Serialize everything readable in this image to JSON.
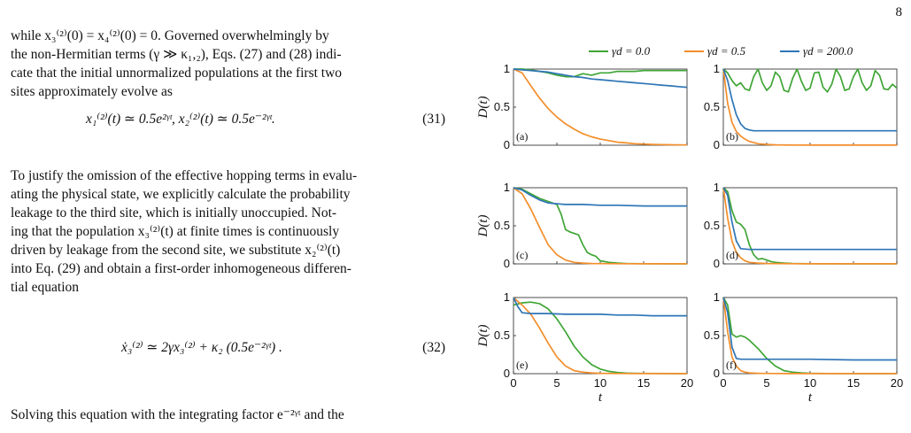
{
  "page_number": "8",
  "text": {
    "para1_lines": [
      "while x₃⁽²⁾(0) = x₄⁽²⁾(0) = 0. Governed overwhelmingly by",
      "the non-Hermitian terms (γ ≫ κ₁,₂), Eqs. (27) and (28) indi-",
      "cate that the initial unnormalized populations at the first two",
      "sites approximately evolve as"
    ],
    "eq31": "x₁⁽²⁾(t) ≃ 0.5e²ᵞᵗ,       x₂⁽²⁾(t) ≃ 0.5e⁻²ᵞᵗ.",
    "eq31_num": "(31)",
    "para2_lines": [
      "To justify the omission of the effective hopping terms in evalu-",
      "ating the physical state, we explicitly calculate the probability",
      "leakage to the third site, which is initially unoccupied. Not-",
      "ing that the population x₃⁽²⁾(t) at finite times is continuously",
      "driven by leakage from the second site, we substitute x₂⁽²⁾(t)",
      "into Eq. (29) and obtain a first-order inhomogeneous differen-",
      "tial equation"
    ],
    "eq32": "ẋ₃⁽²⁾ ≃ 2γx₃⁽²⁾ + κ₂ (0.5e⁻²ᵞᵗ) .",
    "eq32_num": "(32)",
    "para3_line": "Solving this equation with the integrating factor e⁻²ᵞᵗ and the"
  },
  "chart_data": {
    "type": "line",
    "legend": [
      "γd = 0.0",
      "γd = 0.5",
      "γd = 200.0"
    ],
    "colors": [
      "#3fa535",
      "#f28e2b",
      "#2e75b6"
    ],
    "xlabel": "t",
    "ylabel": "D(t)",
    "xlim": [
      0,
      20
    ],
    "ylim": [
      0,
      1
    ],
    "xticks": [
      "0",
      "5",
      "10",
      "15",
      "20"
    ],
    "yticks": [
      "0",
      "0.5",
      "1"
    ],
    "panels": [
      {
        "label": "(a)",
        "series": [
          {
            "x": [
              0,
              1,
              2,
              3,
              4,
              5,
              6,
              7,
              8,
              9,
              10,
              11,
              12,
              13,
              14,
              15,
              16,
              17,
              18,
              19,
              20
            ],
            "y": [
              1,
              1,
              0.99,
              0.97,
              0.95,
              0.92,
              0.9,
              0.9,
              0.94,
              0.92,
              0.95,
              0.95,
              0.97,
              0.97,
              0.97,
              0.98,
              0.98,
              0.98,
              0.98,
              0.98,
              0.98
            ]
          },
          {
            "x": [
              0,
              1,
              2,
              3,
              4,
              5,
              6,
              7,
              8,
              9,
              10,
              11,
              12,
              13,
              14,
              15,
              16,
              17,
              18,
              19,
              20
            ],
            "y": [
              1,
              0.95,
              0.78,
              0.62,
              0.48,
              0.37,
              0.28,
              0.21,
              0.15,
              0.11,
              0.08,
              0.06,
              0.04,
              0.03,
              0.02,
              0.015,
              0.01,
              0.008,
              0.006,
              0.005,
              0.004
            ]
          },
          {
            "x": [
              0,
              1,
              2,
              3,
              4,
              5,
              6,
              7,
              8,
              9,
              10,
              11,
              12,
              13,
              14,
              15,
              16,
              17,
              18,
              19,
              20
            ],
            "y": [
              1,
              0.99,
              0.98,
              0.97,
              0.96,
              0.94,
              0.92,
              0.9,
              0.89,
              0.87,
              0.86,
              0.85,
              0.84,
              0.83,
              0.82,
              0.81,
              0.8,
              0.79,
              0.78,
              0.77,
              0.76
            ]
          }
        ]
      },
      {
        "label": "(b)",
        "series": [
          {
            "x": [
              0,
              0.5,
              1,
              1.5,
              2,
              2.5,
              3,
              3.5,
              4,
              4.5,
              5,
              5.5,
              6,
              6.5,
              7,
              7.5,
              8,
              8.5,
              9,
              9.5,
              10,
              10.5,
              11,
              11.5,
              12,
              12.5,
              13,
              13.5,
              14,
              14.5,
              15,
              15.5,
              16,
              16.5,
              17,
              17.5,
              18,
              18.5,
              19,
              19.5,
              20
            ],
            "y": [
              1,
              0.95,
              0.85,
              0.78,
              0.82,
              0.74,
              0.72,
              0.9,
              1,
              0.82,
              0.72,
              0.78,
              0.96,
              0.9,
              0.72,
              0.7,
              0.88,
              1,
              0.84,
              0.72,
              0.75,
              0.95,
              0.96,
              0.76,
              0.7,
              0.8,
              1,
              0.9,
              0.72,
              0.74,
              0.9,
              1,
              0.82,
              0.72,
              0.78,
              0.98,
              0.92,
              0.74,
              0.73,
              0.8,
              0.75
            ]
          },
          {
            "x": [
              0,
              0.5,
              1,
              1.5,
              2,
              2.5,
              3,
              4,
              5,
              6,
              8,
              10,
              15,
              20
            ],
            "y": [
              1,
              0.55,
              0.3,
              0.18,
              0.12,
              0.08,
              0.05,
              0.02,
              0.01,
              0.005,
              0.002,
              0.001,
              0.001,
              0.001
            ]
          },
          {
            "x": [
              0,
              0.5,
              1,
              1.5,
              2,
              2.5,
              3,
              3.5,
              4,
              5,
              6,
              8,
              10,
              15,
              20
            ],
            "y": [
              1,
              0.85,
              0.6,
              0.4,
              0.28,
              0.22,
              0.2,
              0.19,
              0.19,
              0.19,
              0.19,
              0.19,
              0.19,
              0.19,
              0.19
            ]
          }
        ]
      },
      {
        "label": "(c)",
        "series": [
          {
            "x": [
              0,
              1,
              2,
              3,
              4,
              5,
              5.5,
              6,
              6.5,
              7,
              7.5,
              8,
              8.5,
              9,
              9.5,
              10,
              10.5,
              11,
              12,
              13,
              14,
              15,
              20
            ],
            "y": [
              1,
              0.98,
              0.92,
              0.86,
              0.82,
              0.78,
              0.65,
              0.45,
              0.42,
              0.4,
              0.38,
              0.25,
              0.15,
              0.12,
              0.1,
              0.04,
              0.03,
              0.02,
              0.01,
              0.005,
              0.003,
              0.002,
              0.001
            ]
          },
          {
            "x": [
              0,
              1,
              2,
              3,
              4,
              5,
              6,
              7,
              8,
              9,
              10,
              12,
              15,
              20
            ],
            "y": [
              1,
              0.92,
              0.72,
              0.48,
              0.25,
              0.12,
              0.05,
              0.02,
              0.01,
              0.005,
              0.003,
              0.002,
              0.001,
              0.001
            ]
          },
          {
            "x": [
              0,
              1,
              2,
              3,
              4,
              5,
              6,
              8,
              10,
              12,
              15,
              20
            ],
            "y": [
              1,
              0.97,
              0.9,
              0.84,
              0.8,
              0.79,
              0.78,
              0.78,
              0.77,
              0.77,
              0.76,
              0.76
            ]
          }
        ]
      },
      {
        "label": "(d)",
        "series": [
          {
            "x": [
              0,
              0.5,
              1,
              1.5,
              2,
              2.5,
              3,
              3.5,
              4,
              4.5,
              5,
              5.5,
              6,
              7,
              8,
              10,
              15,
              20
            ],
            "y": [
              1,
              0.95,
              0.7,
              0.55,
              0.52,
              0.45,
              0.25,
              0.12,
              0.06,
              0.07,
              0.05,
              0.03,
              0.02,
              0.01,
              0.005,
              0.002,
              0.001,
              0.001
            ]
          },
          {
            "x": [
              0,
              0.5,
              1,
              1.5,
              2,
              2.5,
              3,
              4,
              5,
              6,
              8,
              10,
              15,
              20
            ],
            "y": [
              1,
              0.6,
              0.3,
              0.15,
              0.08,
              0.04,
              0.02,
              0.01,
              0.005,
              0.003,
              0.002,
              0.001,
              0.001,
              0.001
            ]
          },
          {
            "x": [
              0,
              0.5,
              1,
              1.5,
              2,
              3,
              4,
              5,
              6,
              8,
              10,
              15,
              20
            ],
            "y": [
              1,
              0.9,
              0.55,
              0.3,
              0.2,
              0.19,
              0.19,
              0.19,
              0.19,
              0.19,
              0.19,
              0.19,
              0.19
            ]
          }
        ]
      },
      {
        "label": "(e)",
        "series": [
          {
            "x": [
              0,
              1,
              2,
              3,
              4,
              5,
              6,
              7,
              8,
              9,
              10,
              11,
              12,
              13,
              14,
              15,
              20
            ],
            "y": [
              0.9,
              0.93,
              0.94,
              0.92,
              0.85,
              0.72,
              0.55,
              0.36,
              0.22,
              0.12,
              0.06,
              0.03,
              0.015,
              0.008,
              0.005,
              0.003,
              0.001
            ]
          },
          {
            "x": [
              0,
              1,
              2,
              3,
              4,
              5,
              6,
              7,
              8,
              9,
              10,
              12,
              15,
              20
            ],
            "y": [
              1,
              0.9,
              0.78,
              0.6,
              0.4,
              0.22,
              0.1,
              0.04,
              0.02,
              0.01,
              0.005,
              0.002,
              0.001,
              0.001
            ]
          },
          {
            "x": [
              0,
              0.5,
              1,
              2,
              4,
              6,
              8,
              10,
              12,
              14,
              16,
              18,
              20
            ],
            "y": [
              1,
              0.88,
              0.8,
              0.79,
              0.79,
              0.78,
              0.78,
              0.78,
              0.77,
              0.77,
              0.76,
              0.76,
              0.76
            ]
          }
        ]
      },
      {
        "label": "(f)",
        "series": [
          {
            "x": [
              0,
              0.5,
              1,
              1.5,
              2,
              2.5,
              3,
              4,
              5,
              6,
              7,
              8,
              9,
              10,
              12,
              15,
              20
            ],
            "y": [
              1,
              0.9,
              0.52,
              0.48,
              0.5,
              0.48,
              0.44,
              0.33,
              0.2,
              0.1,
              0.04,
              0.02,
              0.01,
              0.005,
              0.002,
              0.001,
              0.001
            ]
          },
          {
            "x": [
              0,
              0.5,
              1,
              1.5,
              2,
              2.5,
              3,
              4,
              5,
              6,
              8,
              10,
              15,
              20
            ],
            "y": [
              1,
              0.55,
              0.22,
              0.1,
              0.04,
              0.02,
              0.01,
              0.005,
              0.003,
              0.002,
              0.001,
              0.001,
              0.001,
              0.001
            ]
          },
          {
            "x": [
              0,
              0.5,
              1,
              1.5,
              2,
              3,
              4,
              6,
              8,
              10,
              15,
              20
            ],
            "y": [
              1,
              0.8,
              0.35,
              0.2,
              0.19,
              0.19,
              0.19,
              0.19,
              0.19,
              0.19,
              0.18,
              0.18
            ]
          }
        ]
      }
    ]
  },
  "caption_fragment": "... D(t) ..."
}
